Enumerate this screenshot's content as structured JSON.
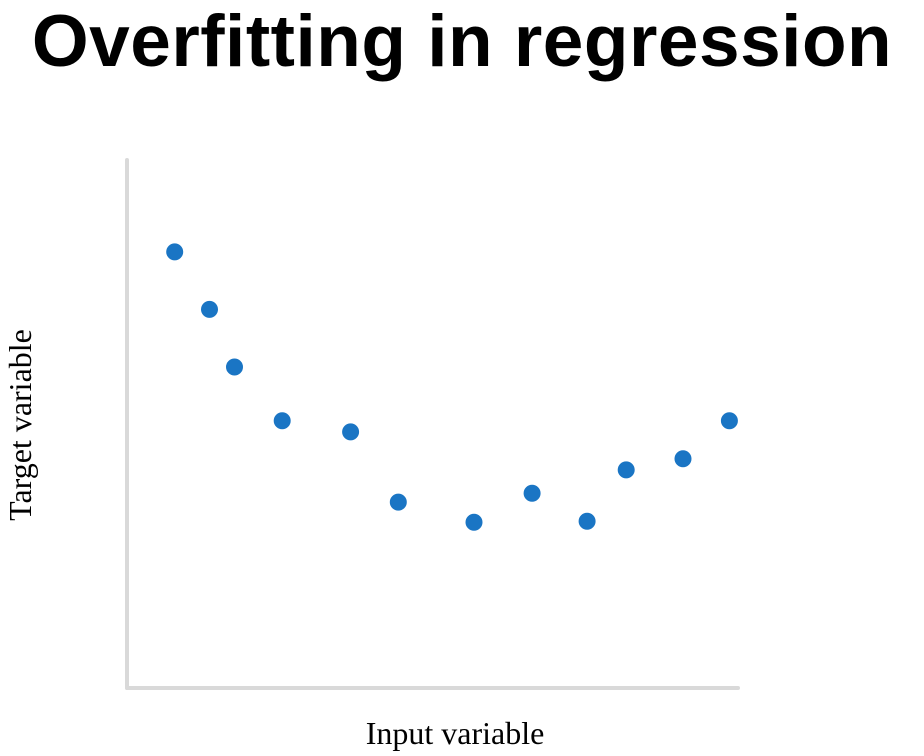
{
  "chart_data": {
    "type": "scatter",
    "title": "Overfitting in regression",
    "xlabel": "Input variable",
    "ylabel": "Target variable",
    "xlim": [
      0,
      100
    ],
    "ylim": [
      0,
      100
    ],
    "grid": false,
    "axis_tick_labels": false,
    "point_color": "#1a75c4",
    "axis_color": "#d9d9d9",
    "points": [
      {
        "x": 7.8,
        "y": 82.6
      },
      {
        "x": 13.5,
        "y": 71.7
      },
      {
        "x": 17.6,
        "y": 60.8
      },
      {
        "x": 25.4,
        "y": 50.6
      },
      {
        "x": 36.6,
        "y": 48.5
      },
      {
        "x": 44.4,
        "y": 35.2
      },
      {
        "x": 56.8,
        "y": 31.4
      },
      {
        "x": 66.3,
        "y": 36.9
      },
      {
        "x": 75.3,
        "y": 31.6
      },
      {
        "x": 81.7,
        "y": 41.3
      },
      {
        "x": 91.0,
        "y": 43.4
      },
      {
        "x": 98.6,
        "y": 50.6
      }
    ]
  }
}
